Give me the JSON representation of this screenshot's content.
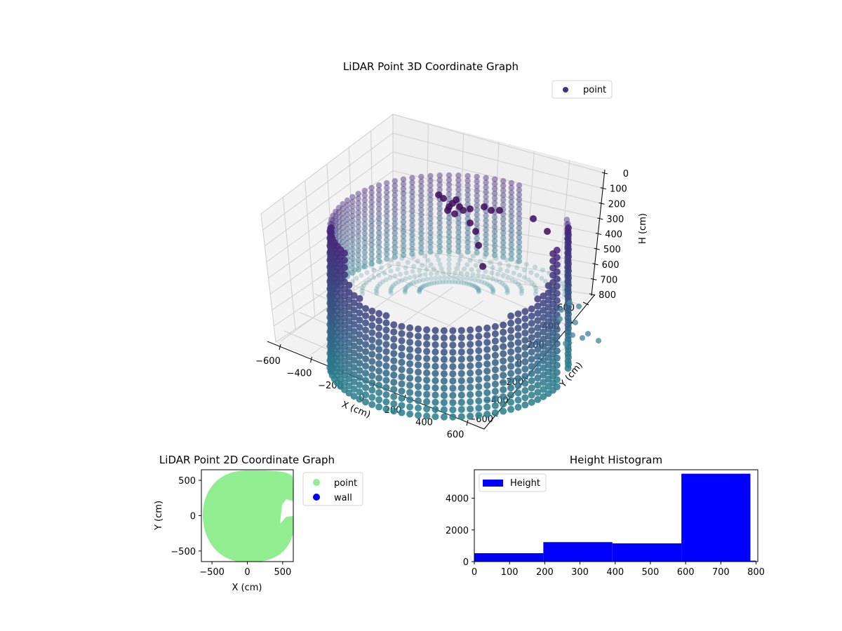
{
  "chart_data": [
    {
      "id": "scatter3d",
      "type": "scatter",
      "projection": "3d",
      "title": "LiDAR Point 3D Coordinate Graph",
      "xlabel": "X (cm)",
      "ylabel": "Y (cm)",
      "zlabel": "H (cm)",
      "x_ticks": [
        -600,
        -400,
        -200,
        0,
        200,
        400,
        600
      ],
      "y_ticks": [
        -600,
        -400,
        -200,
        0,
        200,
        400,
        600
      ],
      "z_ticks": [
        0,
        100,
        200,
        300,
        400,
        500,
        600,
        700,
        800
      ],
      "z_inverted": true,
      "xlim": [
        -650,
        650
      ],
      "ylim": [
        -650,
        650
      ],
      "zlim": [
        800,
        0
      ],
      "legend": [
        {
          "label": "point",
          "marker": "circle",
          "color": "#3b3580"
        }
      ],
      "colormap": "viridis-like (purple at top to teal at bottom)",
      "description": "Cylindrical wall of points radius ~620 cm from H=0 to H=800, with a dense cluster near H~200 and a gap on +X side"
    },
    {
      "id": "scatter2d",
      "type": "scatter",
      "title": "LiDAR Point 2D Coordinate Graph",
      "xlabel": "X (cm)",
      "ylabel": "Y (cm)",
      "x_ticks": [
        -500,
        0,
        500
      ],
      "y_ticks": [
        -500,
        0,
        500
      ],
      "xlim": [
        -650,
        650
      ],
      "ylim": [
        -650,
        650
      ],
      "legend": [
        {
          "label": "point",
          "color": "#90ee90"
        },
        {
          "label": "wall",
          "color": "#0000ff"
        }
      ],
      "description": "Filled disc of points (radius ~620) in light green with notch at right side near Y 0..250"
    },
    {
      "id": "histogram",
      "type": "bar",
      "title": "Height Histogram",
      "xlabel": "",
      "ylabel": "",
      "x_ticks": [
        0,
        100,
        200,
        300,
        400,
        500,
        600,
        700,
        800
      ],
      "y_ticks": [
        0,
        2000,
        4000
      ],
      "xlim": [
        0,
        805
      ],
      "ylim": [
        0,
        5800
      ],
      "legend": [
        {
          "label": "Height",
          "color": "#0000ff"
        }
      ],
      "bins": [
        0,
        196,
        392,
        588,
        784,
        800
      ],
      "values": [
        530,
        1230,
        1150,
        5550,
        60
      ],
      "bar_color": "#0000ff"
    }
  ]
}
